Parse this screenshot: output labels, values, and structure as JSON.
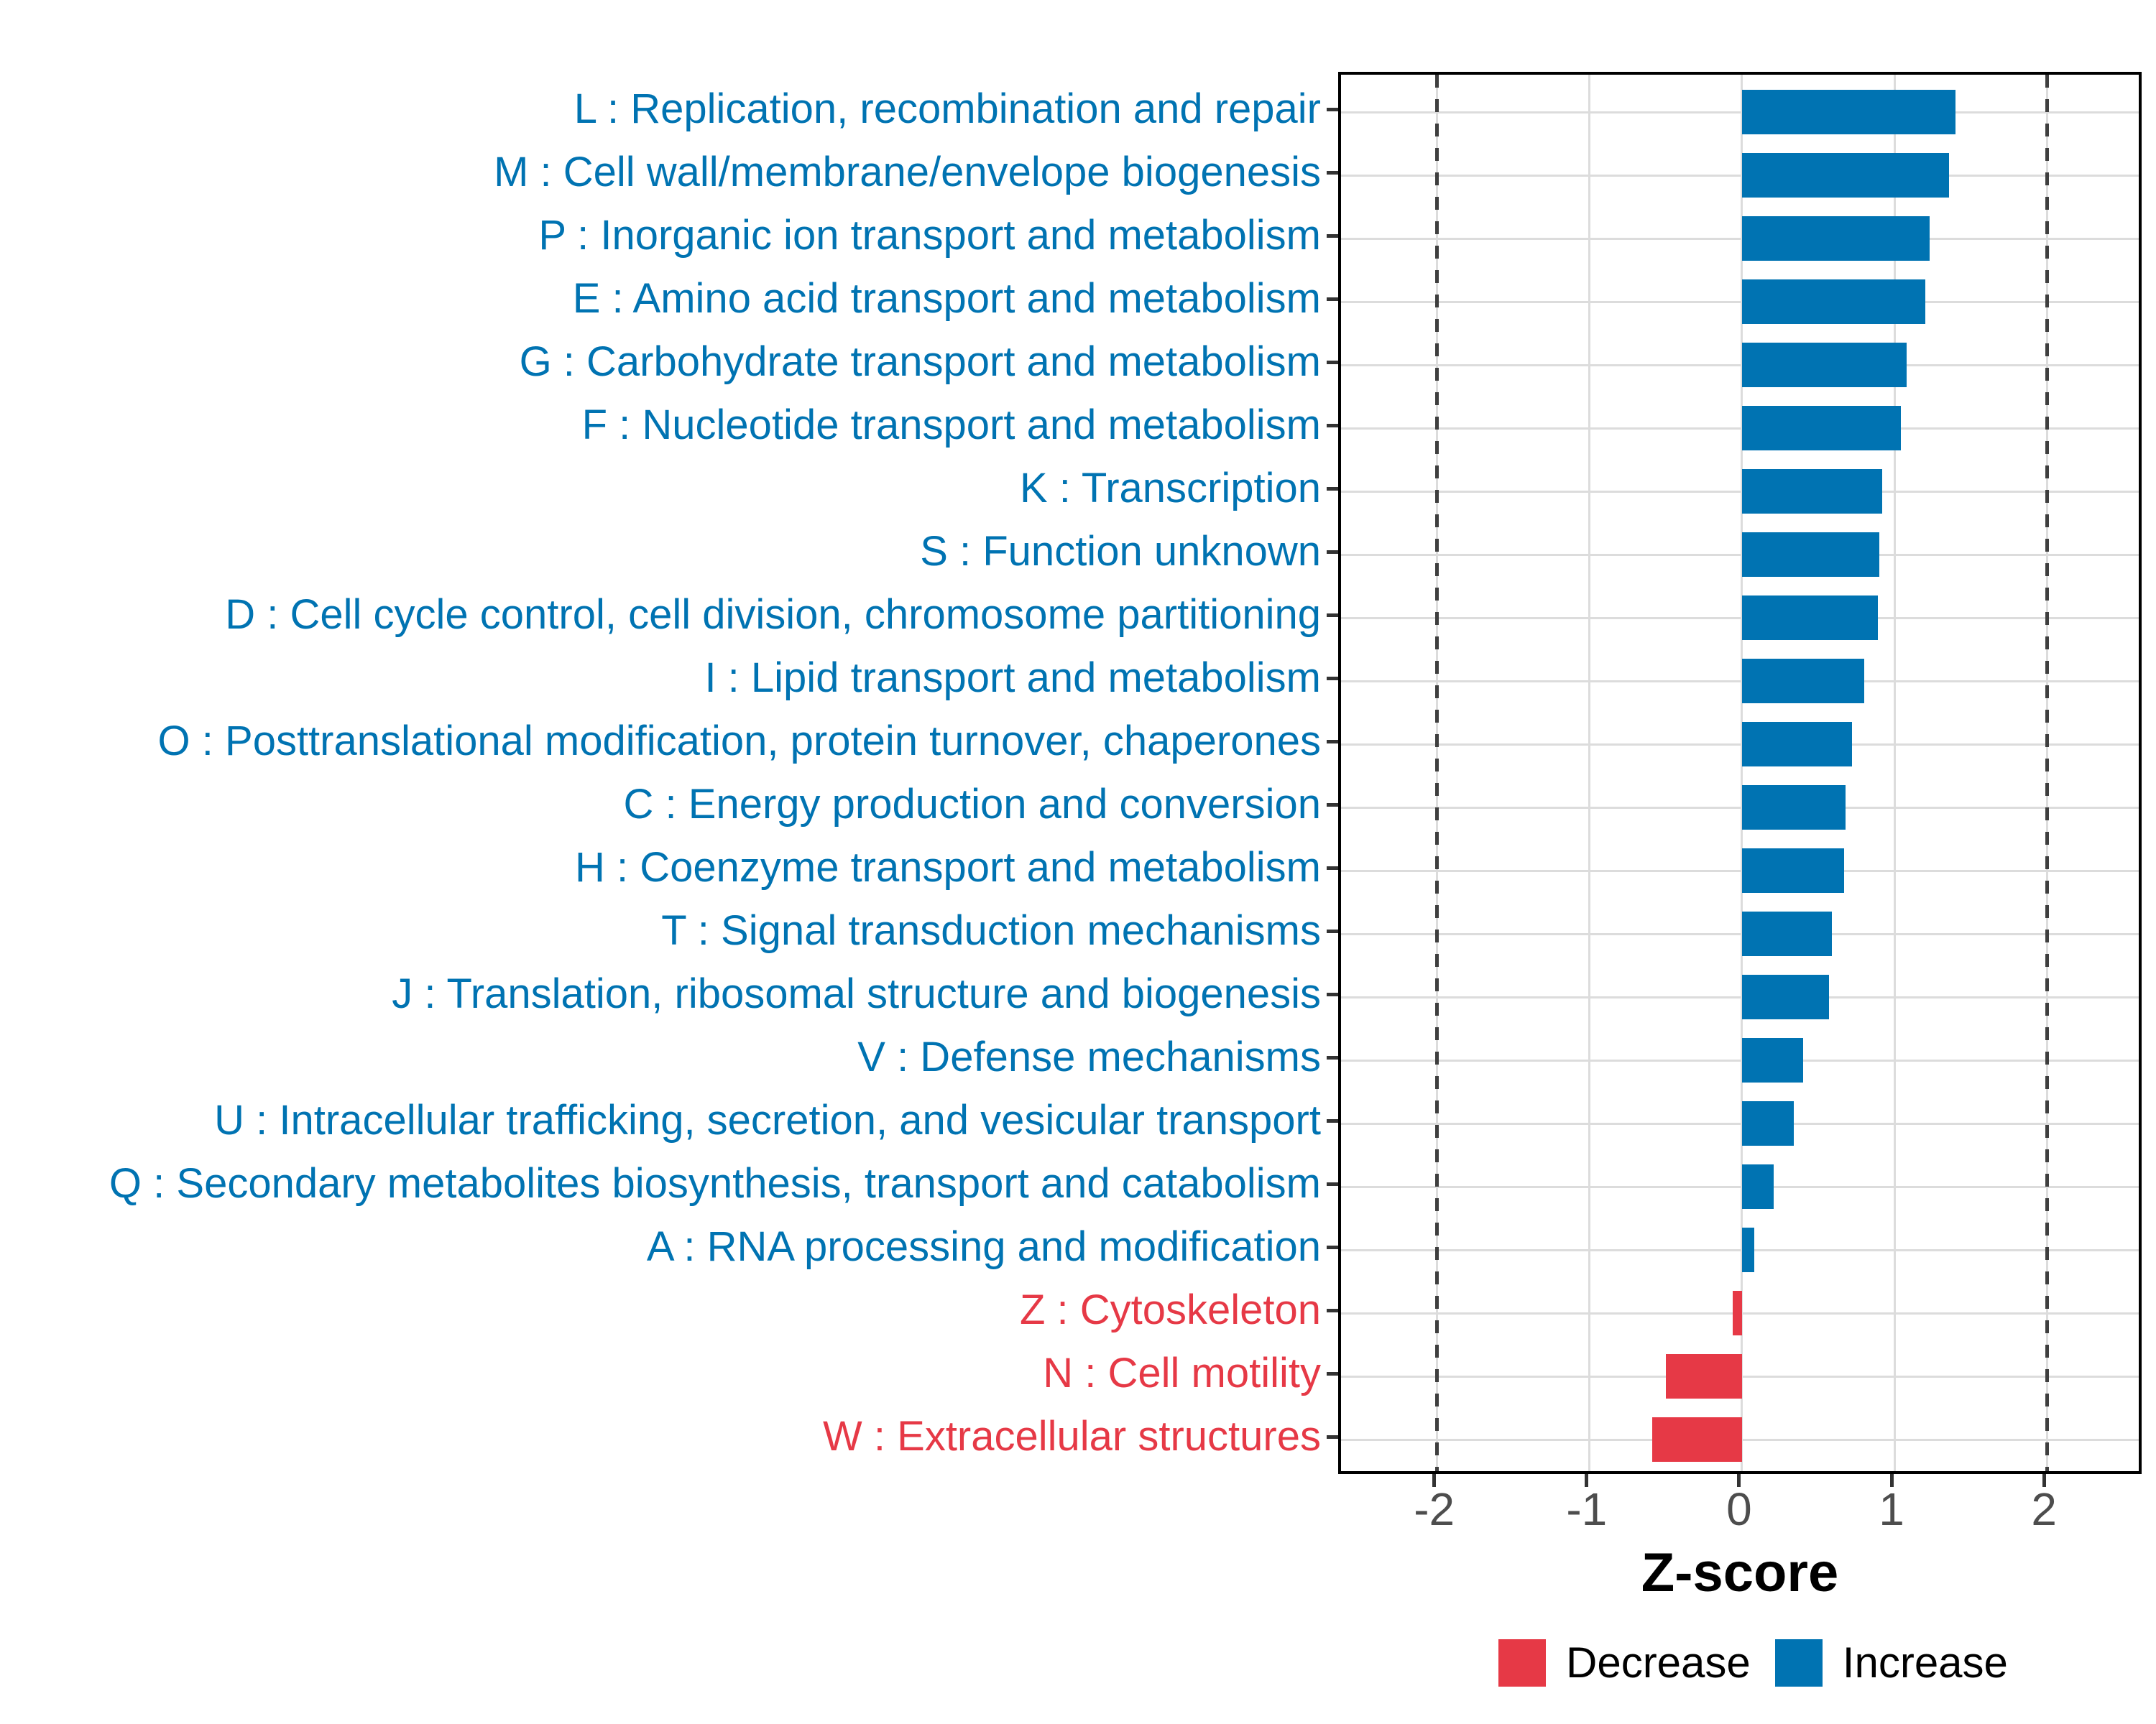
{
  "chart_data": {
    "type": "bar",
    "orientation": "horizontal",
    "title": "",
    "xlabel": "Z-score",
    "ylabel": "",
    "xlim": [
      -2.63,
      2.64
    ],
    "x_ticks": [
      {
        "value": -2,
        "label": "-2"
      },
      {
        "value": -1,
        "label": "-1"
      },
      {
        "value": 0,
        "label": "0"
      },
      {
        "value": 1,
        "label": "1"
      },
      {
        "value": 2,
        "label": "2"
      }
    ],
    "reference_lines": {
      "values": [
        -2,
        2
      ],
      "style": "dashed",
      "color": "#3f3f3f"
    },
    "grid": "major-only",
    "legend": {
      "position": "bottom-right",
      "items": [
        {
          "label": "Decrease",
          "color": "#E63946"
        },
        {
          "label": "Increase",
          "color": "#0073B2"
        }
      ]
    },
    "categories": [
      {
        "label": "L : Replication, recombination and repair",
        "value": 1.4,
        "group": "Increase"
      },
      {
        "label": "M : Cell wall/membrane/envelope biogenesis",
        "value": 1.36,
        "group": "Increase"
      },
      {
        "label": "P : Inorganic ion transport and metabolism",
        "value": 1.23,
        "group": "Increase"
      },
      {
        "label": "E : Amino acid transport and metabolism",
        "value": 1.2,
        "group": "Increase"
      },
      {
        "label": "G : Carbohydrate transport and metabolism",
        "value": 1.08,
        "group": "Increase"
      },
      {
        "label": "F : Nucleotide transport and metabolism",
        "value": 1.04,
        "group": "Increase"
      },
      {
        "label": "K : Transcription",
        "value": 0.92,
        "group": "Increase"
      },
      {
        "label": "S : Function unknown",
        "value": 0.9,
        "group": "Increase"
      },
      {
        "label": "D : Cell cycle control, cell division, chromosome partitioning",
        "value": 0.89,
        "group": "Increase"
      },
      {
        "label": "I : Lipid transport and metabolism",
        "value": 0.8,
        "group": "Increase"
      },
      {
        "label": "O : Posttranslational modification, protein turnover, chaperones",
        "value": 0.72,
        "group": "Increase"
      },
      {
        "label": "C : Energy production and conversion",
        "value": 0.68,
        "group": "Increase"
      },
      {
        "label": "H : Coenzyme transport and metabolism",
        "value": 0.67,
        "group": "Increase"
      },
      {
        "label": "T : Signal transduction mechanisms",
        "value": 0.59,
        "group": "Increase"
      },
      {
        "label": "J : Translation, ribosomal structure and biogenesis",
        "value": 0.57,
        "group": "Increase"
      },
      {
        "label": "V : Defense mechanisms",
        "value": 0.4,
        "group": "Increase"
      },
      {
        "label": "U : Intracellular trafficking, secretion, and vesicular transport",
        "value": 0.34,
        "group": "Increase"
      },
      {
        "label": "Q : Secondary metabolites biosynthesis, transport and catabolism",
        "value": 0.21,
        "group": "Increase"
      },
      {
        "label": "A : RNA processing and modification",
        "value": 0.08,
        "group": "Increase"
      },
      {
        "label": "Z : Cytoskeleton",
        "value": -0.06,
        "group": "Decrease"
      },
      {
        "label": "N : Cell motility",
        "value": -0.5,
        "group": "Decrease"
      },
      {
        "label": "W : Extracellular structures",
        "value": -0.59,
        "group": "Decrease"
      }
    ],
    "colors": {
      "increase": "#0073B2",
      "decrease": "#E63946",
      "grid": "#dcdcdc",
      "axis_text": "#4d4d4d",
      "panel_border": "#000000"
    }
  }
}
